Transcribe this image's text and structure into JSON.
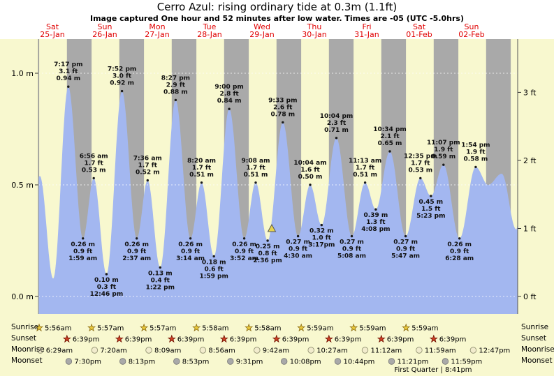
{
  "title": "Cerro Azul: rising  ordinary tide at 0.3m (1.1ft)",
  "subtitle": "Image captured One hour and 52 minutes after low water. Times are -05 (UTC -5.0hrs)",
  "colors": {
    "page_bg": "#f8f8cf",
    "header_bg": "#ffffff",
    "night_band": "#a9a9a9",
    "water": "#a3b7f0",
    "day_label_red": "#e00000",
    "sunrise_star": "#e8c83c",
    "sunset_star": "#cc4125",
    "moonrise_moon": "#f2eccd",
    "moonset_moon": "#a9a9a9",
    "marker": "#e6d34e"
  },
  "days": [
    {
      "day": "Sat",
      "date": "25-Jan"
    },
    {
      "day": "Sun",
      "date": "26-Jan"
    },
    {
      "day": "Mon",
      "date": "27-Jan"
    },
    {
      "day": "Tue",
      "date": "28-Jan"
    },
    {
      "day": "Wed",
      "date": "29-Jan"
    },
    {
      "day": "Thu",
      "date": "30-Jan"
    },
    {
      "day": "Fri",
      "date": "31-Jan"
    },
    {
      "day": "Sat",
      "date": "01-Feb"
    },
    {
      "day": "Sun",
      "date": "02-Feb"
    }
  ],
  "axes": {
    "left": [
      {
        "label": "1.0 m",
        "m": 1.0
      },
      {
        "label": "0.5 m",
        "m": 0.5
      },
      {
        "label": "0.0 m",
        "m": 0.0
      }
    ],
    "right": [
      {
        "label": "3 ft",
        "m": 0.9144
      },
      {
        "label": "2 ft",
        "m": 0.6096
      },
      {
        "label": "1 ft",
        "m": 0.3048
      },
      {
        "label": "0 ft",
        "m": 0.0
      }
    ]
  },
  "chart_data": {
    "type": "area",
    "title": "Cerro Azul: rising ordinary tide at 0.3m (1.1ft)",
    "x_axis": "time, Sat 25-Jan through Sun 02-Feb (hours from 25-Jan 00:00)",
    "y_axis_left": "tide height (m)",
    "y_axis_right": "tide height (ft)",
    "ylim_m": [
      -0.08,
      1.23
    ],
    "gridlines_m": [
      0.0,
      0.5,
      1.0
    ],
    "events": [
      {
        "kind": "high",
        "t": 19.28,
        "h": 0.94,
        "time": "7:17 pm",
        "ft": "3.1 ft",
        "m": "0.94 m"
      },
      {
        "kind": "low",
        "t": 25.98,
        "h": 0.26,
        "time": "1:59 am",
        "ft": "0.9 ft",
        "m": "0.26 m"
      },
      {
        "kind": "high",
        "t": 30.93,
        "h": 0.53,
        "time": "6:56 am",
        "ft": "1.7 ft",
        "m": "0.53 m"
      },
      {
        "kind": "low",
        "t": 36.77,
        "h": 0.1,
        "time": "12:46 pm",
        "ft": "0.3 ft",
        "m": "0.10 m"
      },
      {
        "kind": "high",
        "t": 43.87,
        "h": 0.92,
        "time": "7:52 pm",
        "ft": "3.0 ft",
        "m": "0.92 m"
      },
      {
        "kind": "low",
        "t": 50.62,
        "h": 0.26,
        "time": "2:37 am",
        "ft": "0.9 ft",
        "m": "0.26 m"
      },
      {
        "kind": "high",
        "t": 55.6,
        "h": 0.52,
        "time": "7:36 am",
        "ft": "1.7 ft",
        "m": "0.52 m"
      },
      {
        "kind": "low",
        "t": 61.37,
        "h": 0.13,
        "time": "1:22 pm",
        "ft": "0.4 ft",
        "m": "0.13 m"
      },
      {
        "kind": "high",
        "t": 68.45,
        "h": 0.88,
        "time": "8:27 pm",
        "ft": "2.9 ft",
        "m": "0.88 m"
      },
      {
        "kind": "low",
        "t": 75.23,
        "h": 0.26,
        "time": "3:14 am",
        "ft": "0.9 ft",
        "m": "0.26 m"
      },
      {
        "kind": "high",
        "t": 80.33,
        "h": 0.51,
        "time": "8:20 am",
        "ft": "1.7 ft",
        "m": "0.51 m"
      },
      {
        "kind": "low",
        "t": 85.98,
        "h": 0.18,
        "time": "1:59 pm",
        "ft": "0.6 ft",
        "m": "0.18 m"
      },
      {
        "kind": "high",
        "t": 93.0,
        "h": 0.84,
        "time": "9:00 pm",
        "ft": "2.8 ft",
        "m": "0.84 m"
      },
      {
        "kind": "low",
        "t": 99.87,
        "h": 0.26,
        "time": "3:52 am",
        "ft": "0.9 ft",
        "m": "0.26 m"
      },
      {
        "kind": "high",
        "t": 105.13,
        "h": 0.51,
        "time": "9:08 am",
        "ft": "1.7 ft",
        "m": "0.51 m"
      },
      {
        "kind": "low",
        "t": 110.6,
        "h": 0.25,
        "time": "2:36 pm",
        "ft": "0.8 ft",
        "m": "0.25 m"
      },
      {
        "kind": "high",
        "t": 117.55,
        "h": 0.78,
        "time": "9:33 pm",
        "ft": "2.6 ft",
        "m": "0.78 m"
      },
      {
        "kind": "low",
        "t": 124.5,
        "h": 0.27,
        "time": "4:30 am",
        "ft": "0.9 ft",
        "m": "0.27 m"
      },
      {
        "kind": "high",
        "t": 130.07,
        "h": 0.5,
        "time": "10:04 am",
        "ft": "1.6 ft",
        "m": "0.50 m"
      },
      {
        "kind": "low",
        "t": 135.28,
        "h": 0.32,
        "time": "3:17pm",
        "ft": "1.0 ft",
        "m": "0.32 m"
      },
      {
        "kind": "high",
        "t": 142.07,
        "h": 0.71,
        "time": "10:04 pm",
        "ft": "2.3 ft",
        "m": "0.71 m"
      },
      {
        "kind": "low",
        "t": 149.13,
        "h": 0.27,
        "time": "5:08 am",
        "ft": "0.9 ft",
        "m": "0.27 m"
      },
      {
        "kind": "high",
        "t": 155.22,
        "h": 0.51,
        "time": "11:13 am",
        "ft": "1.7 ft",
        "m": "0.51 m"
      },
      {
        "kind": "low",
        "t": 160.13,
        "h": 0.39,
        "time": "4:08 pm",
        "ft": "1.3 ft",
        "m": "0.39 m"
      },
      {
        "kind": "high",
        "t": 166.57,
        "h": 0.65,
        "time": "10:34 pm",
        "ft": "2.1 ft",
        "m": "0.65 m"
      },
      {
        "kind": "low",
        "t": 173.78,
        "h": 0.27,
        "time": "5:47 am",
        "ft": "0.9 ft",
        "m": "0.27 m"
      },
      {
        "kind": "high",
        "t": 180.58,
        "h": 0.53,
        "time": "12:35 pm",
        "ft": "1.7 ft",
        "m": "0.53 m"
      },
      {
        "kind": "low",
        "t": 185.38,
        "h": 0.45,
        "time": "5:23 pm",
        "ft": "1.5 ft",
        "m": "0.45 m"
      },
      {
        "kind": "high",
        "t": 191.12,
        "h": 0.59,
        "time": "11:07 pm",
        "ft": "1.9 ft",
        "m": "0.59 m"
      },
      {
        "kind": "low",
        "t": 198.47,
        "h": 0.26,
        "time": "6:28 am",
        "ft": "0.9 ft",
        "m": "0.26 m"
      },
      {
        "kind": "high",
        "t": 205.9,
        "h": 0.58,
        "time": "1:54 pm",
        "ft": "1.9 ft",
        "m": "0.58 m"
      }
    ],
    "edge_points": [
      {
        "t": 0.7,
        "h": 0.26
      },
      {
        "t": 6.25,
        "h": 0.54
      },
      {
        "t": 12.35,
        "h": 0.08
      },
      {
        "t": 211.6,
        "h": 0.5
      },
      {
        "t": 217.8,
        "h": 0.55
      },
      {
        "t": 224.5,
        "h": 0.3
      },
      {
        "t": 227.0,
        "h": 0.5
      }
    ],
    "marker": {
      "t": 112.47,
      "h": 0.3,
      "meaning": "current tide level 0.3m, rising, 1h52m after low water"
    }
  },
  "almanac": {
    "row_labels": [
      "Sunrise",
      "Sunset",
      "Moonrise",
      "Moonset"
    ],
    "sunrise": [
      {
        "time": "5:56am",
        "t": 5.93
      },
      {
        "time": "5:57am",
        "t": 29.95
      },
      {
        "time": "5:57am",
        "t": 53.95
      },
      {
        "time": "5:58am",
        "t": 77.97
      },
      {
        "time": "5:58am",
        "t": 101.97
      },
      {
        "time": "5:59am",
        "t": 125.98
      },
      {
        "time": "5:59am",
        "t": 149.98
      },
      {
        "time": "5:59am",
        "t": 173.98
      }
    ],
    "sunset": [
      {
        "time": "6:39pm",
        "t": 18.65
      },
      {
        "time": "6:39pm",
        "t": 42.65
      },
      {
        "time": "6:39pm",
        "t": 66.65
      },
      {
        "time": "6:39pm",
        "t": 90.65
      },
      {
        "time": "6:39pm",
        "t": 114.65
      },
      {
        "time": "6:39pm",
        "t": 138.65
      },
      {
        "time": "6:39pm",
        "t": 162.65
      },
      {
        "time": "6:39pm",
        "t": 186.65
      }
    ],
    "moonrise": [
      {
        "time": "6:29am",
        "t": 6.48
      },
      {
        "time": "7:20am",
        "t": 31.33
      },
      {
        "time": "8:09am",
        "t": 56.15
      },
      {
        "time": "8:56am",
        "t": 80.93
      },
      {
        "time": "9:42am",
        "t": 105.7
      },
      {
        "time": "10:27am",
        "t": 130.45
      },
      {
        "time": "11:12am",
        "t": 155.2
      },
      {
        "time": "11:59am",
        "t": 179.98
      },
      {
        "time": "12:47pm",
        "t": 204.78
      }
    ],
    "moonset": [
      {
        "time": "7:30pm",
        "t": 19.5
      },
      {
        "time": "8:13pm",
        "t": 44.22
      },
      {
        "time": "8:53pm",
        "t": 68.88
      },
      {
        "time": "9:31pm",
        "t": 93.52
      },
      {
        "time": "10:08pm",
        "t": 118.13
      },
      {
        "time": "10:44pm",
        "t": 142.73
      },
      {
        "time": "11:21pm",
        "t": 167.35
      },
      {
        "time": "11:59pm",
        "t": 191.98
      }
    ],
    "footnote": "First Quarter | 8:41pm"
  }
}
